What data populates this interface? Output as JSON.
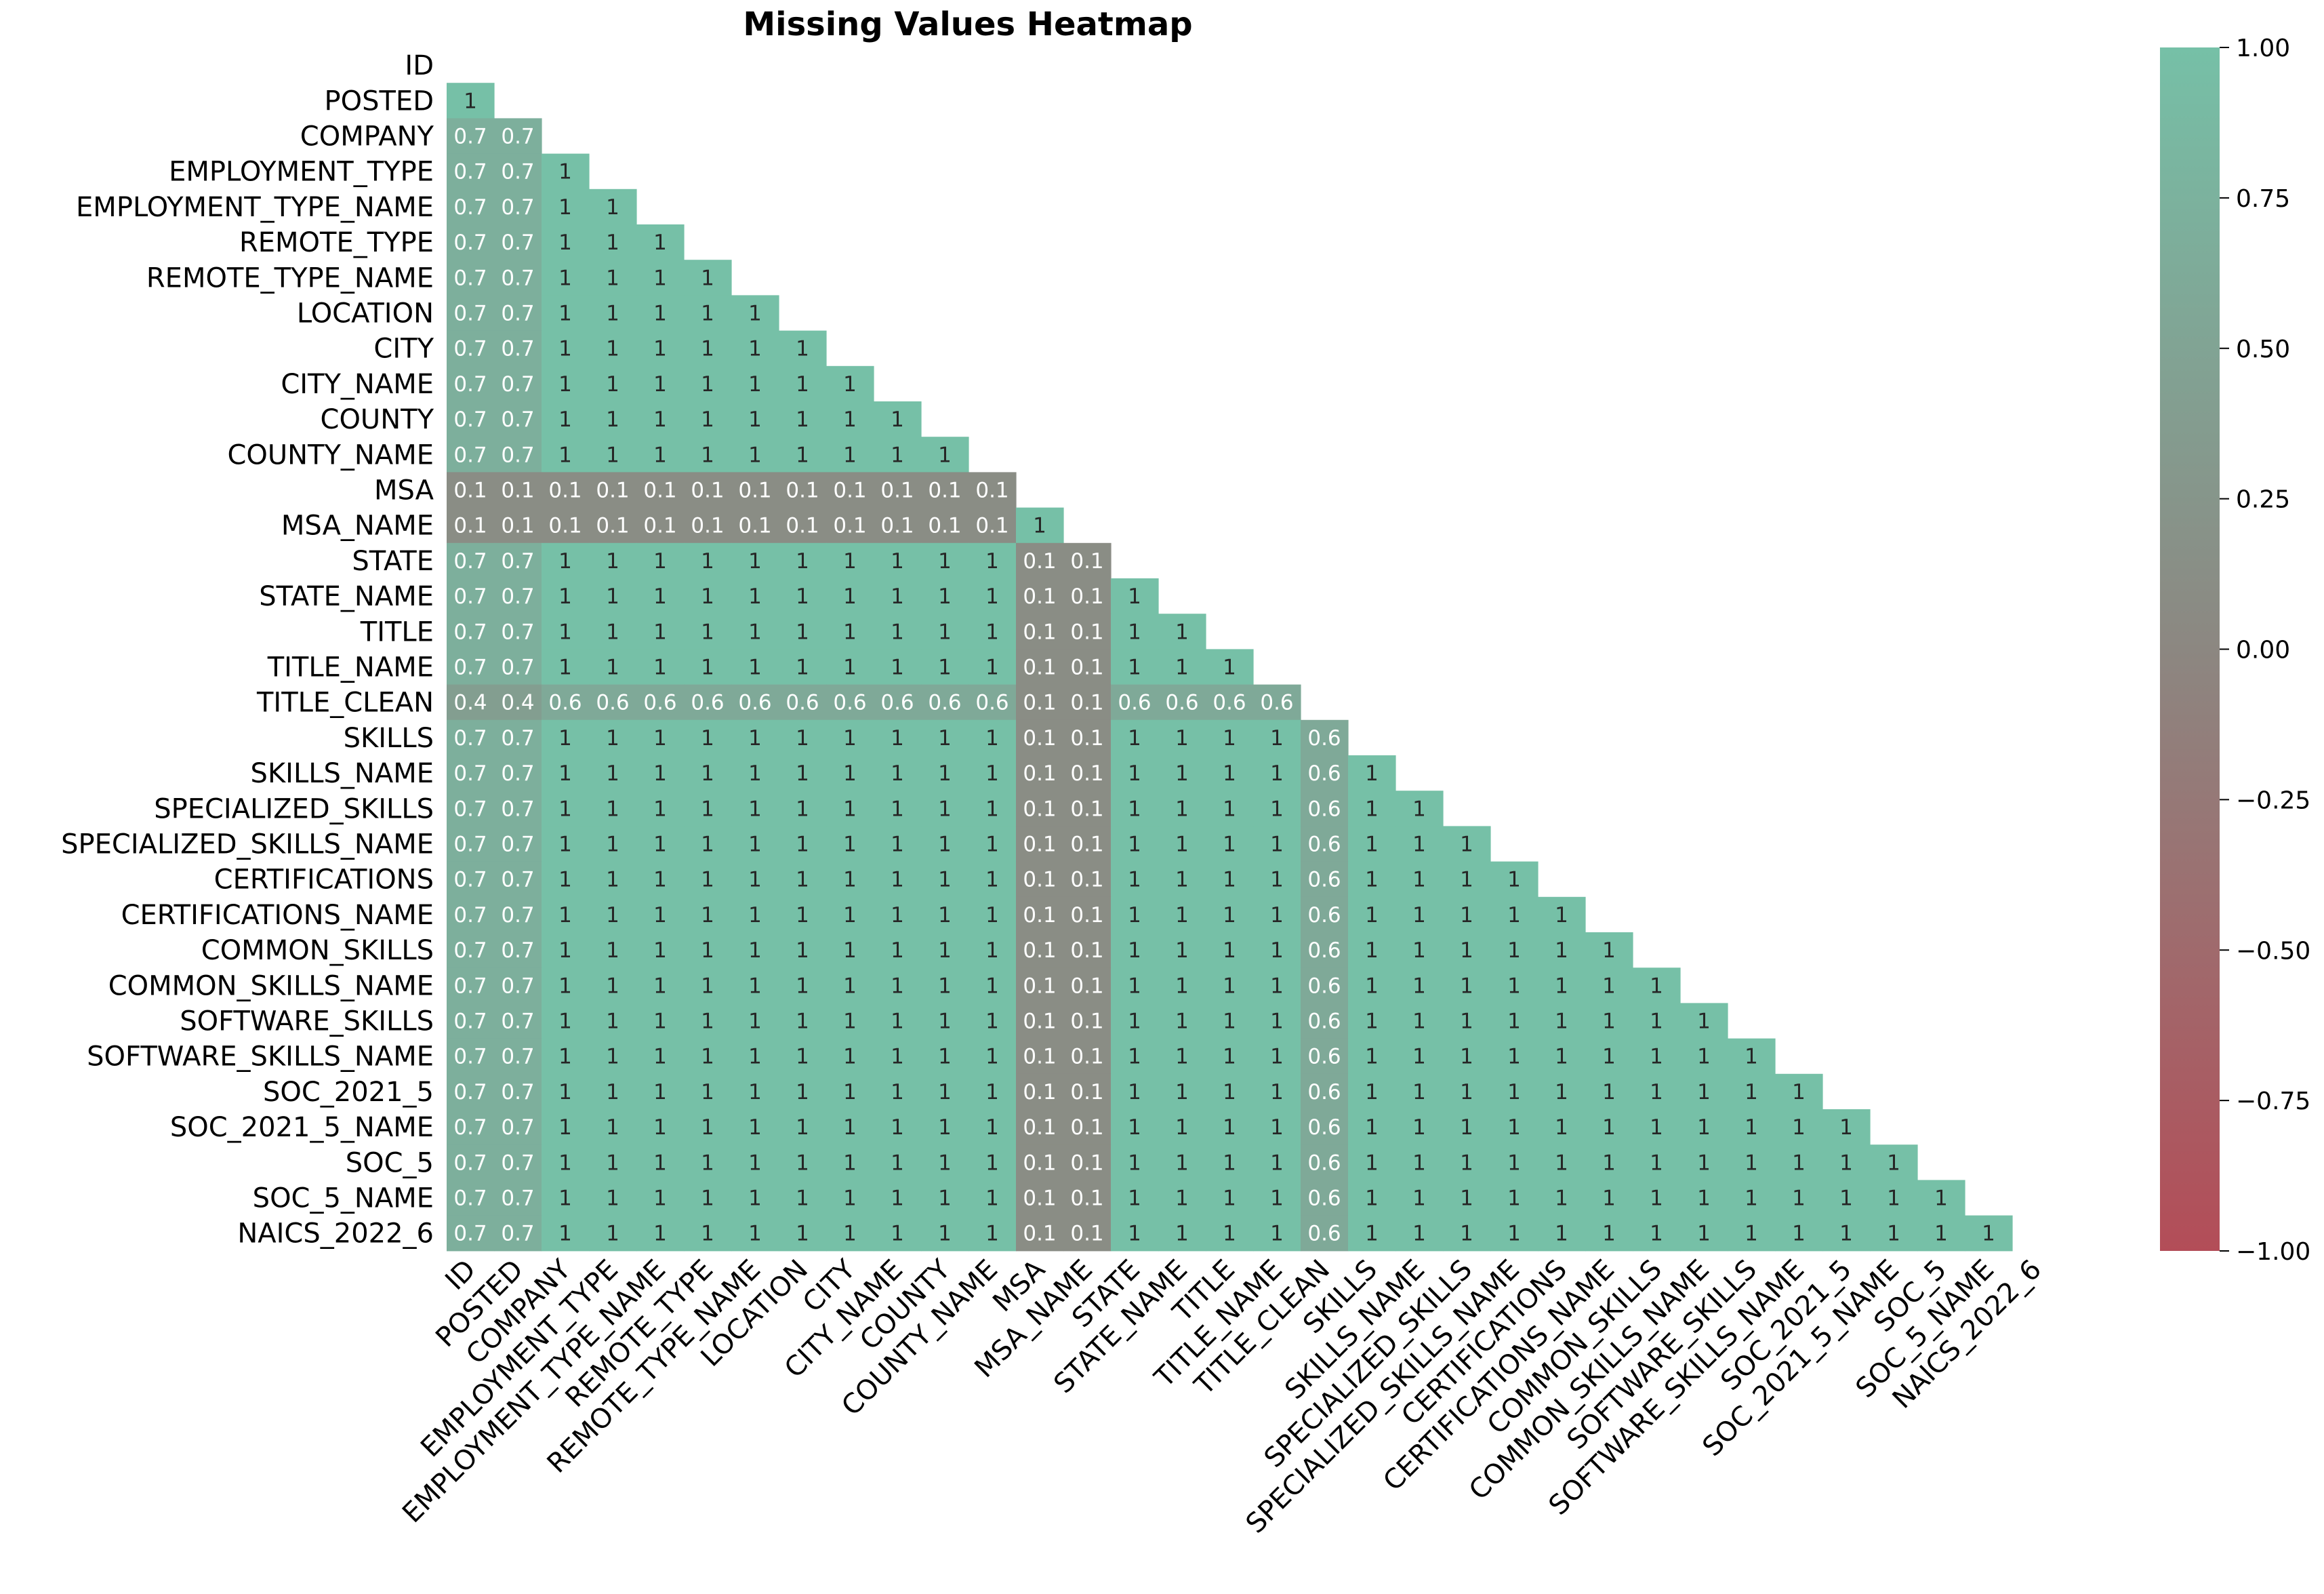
{
  "chart_data": {
    "type": "heatmap",
    "title": "Missing Values Heatmap",
    "xlabel": "",
    "ylabel": "",
    "labels": [
      "ID",
      "POSTED",
      "COMPANY",
      "EMPLOYMENT_TYPE",
      "EMPLOYMENT_TYPE_NAME",
      "REMOTE_TYPE",
      "REMOTE_TYPE_NAME",
      "LOCATION",
      "CITY",
      "CITY_NAME",
      "COUNTY",
      "COUNTY_NAME",
      "MSA",
      "MSA_NAME",
      "STATE",
      "STATE_NAME",
      "TITLE",
      "TITLE_NAME",
      "TITLE_CLEAN",
      "SKILLS",
      "SKILLS_NAME",
      "SPECIALIZED_SKILLS",
      "SPECIALIZED_SKILLS_NAME",
      "CERTIFICATIONS",
      "CERTIFICATIONS_NAME",
      "COMMON_SKILLS",
      "COMMON_SKILLS_NAME",
      "SOFTWARE_SKILLS",
      "SOFTWARE_SKILLS_NAME",
      "SOC_2021_5",
      "SOC_2021_5_NAME",
      "SOC_5",
      "SOC_5_NAME",
      "NAICS_2022_6"
    ],
    "mask": "lower triangle shown, diagonal and upper triangle hidden",
    "cells": [
      [],
      [
        1
      ],
      [
        0.7,
        0.7
      ],
      [
        0.7,
        0.7,
        1
      ],
      [
        0.7,
        0.7,
        1,
        1
      ],
      [
        0.7,
        0.7,
        1,
        1,
        1
      ],
      [
        0.7,
        0.7,
        1,
        1,
        1,
        1
      ],
      [
        0.7,
        0.7,
        1,
        1,
        1,
        1,
        1
      ],
      [
        0.7,
        0.7,
        1,
        1,
        1,
        1,
        1,
        1
      ],
      [
        0.7,
        0.7,
        1,
        1,
        1,
        1,
        1,
        1,
        1
      ],
      [
        0.7,
        0.7,
        1,
        1,
        1,
        1,
        1,
        1,
        1,
        1
      ],
      [
        0.7,
        0.7,
        1,
        1,
        1,
        1,
        1,
        1,
        1,
        1,
        1
      ],
      [
        0.1,
        0.1,
        0.1,
        0.1,
        0.1,
        0.1,
        0.1,
        0.1,
        0.1,
        0.1,
        0.1,
        0.1
      ],
      [
        0.1,
        0.1,
        0.1,
        0.1,
        0.1,
        0.1,
        0.1,
        0.1,
        0.1,
        0.1,
        0.1,
        0.1,
        1
      ],
      [
        0.7,
        0.7,
        1,
        1,
        1,
        1,
        1,
        1,
        1,
        1,
        1,
        1,
        0.1,
        0.1
      ],
      [
        0.7,
        0.7,
        1,
        1,
        1,
        1,
        1,
        1,
        1,
        1,
        1,
        1,
        0.1,
        0.1,
        1
      ],
      [
        0.7,
        0.7,
        1,
        1,
        1,
        1,
        1,
        1,
        1,
        1,
        1,
        1,
        0.1,
        0.1,
        1,
        1
      ],
      [
        0.7,
        0.7,
        1,
        1,
        1,
        1,
        1,
        1,
        1,
        1,
        1,
        1,
        0.1,
        0.1,
        1,
        1,
        1
      ],
      [
        0.4,
        0.4,
        0.6,
        0.6,
        0.6,
        0.6,
        0.6,
        0.6,
        0.6,
        0.6,
        0.6,
        0.6,
        0.1,
        0.1,
        0.6,
        0.6,
        0.6,
        0.6
      ],
      [
        0.7,
        0.7,
        1,
        1,
        1,
        1,
        1,
        1,
        1,
        1,
        1,
        1,
        0.1,
        0.1,
        1,
        1,
        1,
        1,
        0.6
      ],
      [
        0.7,
        0.7,
        1,
        1,
        1,
        1,
        1,
        1,
        1,
        1,
        1,
        1,
        0.1,
        0.1,
        1,
        1,
        1,
        1,
        0.6,
        1
      ],
      [
        0.7,
        0.7,
        1,
        1,
        1,
        1,
        1,
        1,
        1,
        1,
        1,
        1,
        0.1,
        0.1,
        1,
        1,
        1,
        1,
        0.6,
        1,
        1
      ],
      [
        0.7,
        0.7,
        1,
        1,
        1,
        1,
        1,
        1,
        1,
        1,
        1,
        1,
        0.1,
        0.1,
        1,
        1,
        1,
        1,
        0.6,
        1,
        1,
        1
      ],
      [
        0.7,
        0.7,
        1,
        1,
        1,
        1,
        1,
        1,
        1,
        1,
        1,
        1,
        0.1,
        0.1,
        1,
        1,
        1,
        1,
        0.6,
        1,
        1,
        1,
        1
      ],
      [
        0.7,
        0.7,
        1,
        1,
        1,
        1,
        1,
        1,
        1,
        1,
        1,
        1,
        0.1,
        0.1,
        1,
        1,
        1,
        1,
        0.6,
        1,
        1,
        1,
        1,
        1
      ],
      [
        0.7,
        0.7,
        1,
        1,
        1,
        1,
        1,
        1,
        1,
        1,
        1,
        1,
        0.1,
        0.1,
        1,
        1,
        1,
        1,
        0.6,
        1,
        1,
        1,
        1,
        1,
        1
      ],
      [
        0.7,
        0.7,
        1,
        1,
        1,
        1,
        1,
        1,
        1,
        1,
        1,
        1,
        0.1,
        0.1,
        1,
        1,
        1,
        1,
        0.6,
        1,
        1,
        1,
        1,
        1,
        1,
        1
      ],
      [
        0.7,
        0.7,
        1,
        1,
        1,
        1,
        1,
        1,
        1,
        1,
        1,
        1,
        0.1,
        0.1,
        1,
        1,
        1,
        1,
        0.6,
        1,
        1,
        1,
        1,
        1,
        1,
        1,
        1
      ],
      [
        0.7,
        0.7,
        1,
        1,
        1,
        1,
        1,
        1,
        1,
        1,
        1,
        1,
        0.1,
        0.1,
        1,
        1,
        1,
        1,
        0.6,
        1,
        1,
        1,
        1,
        1,
        1,
        1,
        1,
        1
      ],
      [
        0.7,
        0.7,
        1,
        1,
        1,
        1,
        1,
        1,
        1,
        1,
        1,
        1,
        0.1,
        0.1,
        1,
        1,
        1,
        1,
        0.6,
        1,
        1,
        1,
        1,
        1,
        1,
        1,
        1,
        1,
        1
      ],
      [
        0.7,
        0.7,
        1,
        1,
        1,
        1,
        1,
        1,
        1,
        1,
        1,
        1,
        0.1,
        0.1,
        1,
        1,
        1,
        1,
        0.6,
        1,
        1,
        1,
        1,
        1,
        1,
        1,
        1,
        1,
        1,
        1
      ],
      [
        0.7,
        0.7,
        1,
        1,
        1,
        1,
        1,
        1,
        1,
        1,
        1,
        1,
        0.1,
        0.1,
        1,
        1,
        1,
        1,
        0.6,
        1,
        1,
        1,
        1,
        1,
        1,
        1,
        1,
        1,
        1,
        1,
        1
      ],
      [
        0.7,
        0.7,
        1,
        1,
        1,
        1,
        1,
        1,
        1,
        1,
        1,
        1,
        0.1,
        0.1,
        1,
        1,
        1,
        1,
        0.6,
        1,
        1,
        1,
        1,
        1,
        1,
        1,
        1,
        1,
        1,
        1,
        1,
        1
      ],
      [
        0.7,
        0.7,
        1,
        1,
        1,
        1,
        1,
        1,
        1,
        1,
        1,
        1,
        0.1,
        0.1,
        1,
        1,
        1,
        1,
        0.6,
        1,
        1,
        1,
        1,
        1,
        1,
        1,
        1,
        1,
        1,
        1,
        1,
        1,
        1
      ]
    ],
    "colorbar": {
      "range": [
        -1,
        1
      ],
      "ticks": [
        1,
        0.75,
        0.5,
        0.25,
        0,
        -0.25,
        -0.5,
        -0.75,
        -1
      ],
      "tick_labels": [
        "1.00",
        "0.75",
        "0.50",
        "0.25",
        "0.00",
        "−0.25",
        "−0.50",
        "−0.75",
        "−1.00"
      ],
      "colors": {
        "low": "#b34d58",
        "mid": "#8c8781",
        "high": "#76c0a7"
      }
    },
    "annotation_text_colors": {
      "dark": "#262626",
      "light": "#ffffff"
    },
    "grid": false,
    "legend": "colorbar at right"
  }
}
